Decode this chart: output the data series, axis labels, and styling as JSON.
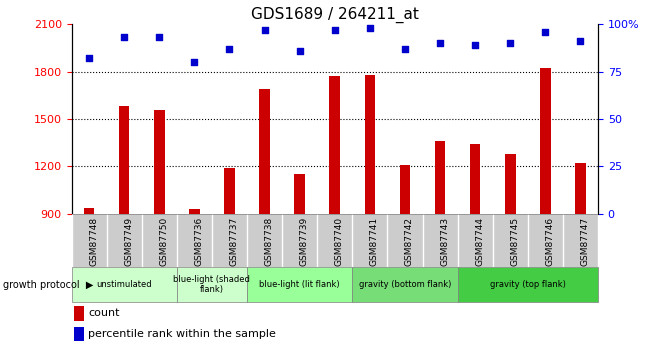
{
  "title": "GDS1689 / 264211_at",
  "categories": [
    "GSM87748",
    "GSM87749",
    "GSM87750",
    "GSM87736",
    "GSM87737",
    "GSM87738",
    "GSM87739",
    "GSM87740",
    "GSM87741",
    "GSM87742",
    "GSM87743",
    "GSM87744",
    "GSM87745",
    "GSM87746",
    "GSM87747"
  ],
  "bar_values": [
    940,
    1580,
    1560,
    930,
    1190,
    1690,
    1150,
    1770,
    1780,
    1210,
    1360,
    1340,
    1280,
    1820,
    1220
  ],
  "scatter_values": [
    82,
    93,
    93,
    80,
    87,
    97,
    86,
    97,
    98,
    87,
    90,
    89,
    90,
    96,
    91
  ],
  "bar_color": "#cc0000",
  "scatter_color": "#0000cc",
  "ylim_left": [
    900,
    2100
  ],
  "ylim_right": [
    0,
    100
  ],
  "yticks_left": [
    900,
    1200,
    1500,
    1800,
    2100
  ],
  "yticks_right": [
    0,
    25,
    50,
    75,
    100
  ],
  "ytick_labels_right": [
    "0",
    "25",
    "50",
    "75",
    "100%"
  ],
  "grid_values": [
    1200,
    1500,
    1800
  ],
  "groups": [
    {
      "label": "unstimulated",
      "start": 0,
      "end": 3,
      "color": "#ccffcc"
    },
    {
      "label": "blue-light (shaded\nflank)",
      "start": 3,
      "end": 5,
      "color": "#ccffcc"
    },
    {
      "label": "blue-light (lit flank)",
      "start": 5,
      "end": 8,
      "color": "#99ff99"
    },
    {
      "label": "gravity (bottom flank)",
      "start": 8,
      "end": 11,
      "color": "#77dd77"
    },
    {
      "label": "gravity (top flank)",
      "start": 11,
      "end": 15,
      "color": "#44cc44"
    }
  ],
  "group_label_prefix": "growth protocol",
  "legend_bar_label": "count",
  "legend_scatter_label": "percentile rank within the sample",
  "bar_width": 0.3,
  "title_fontsize": 11,
  "tick_label_bg": "#cccccc",
  "plot_bg": "#ffffff"
}
